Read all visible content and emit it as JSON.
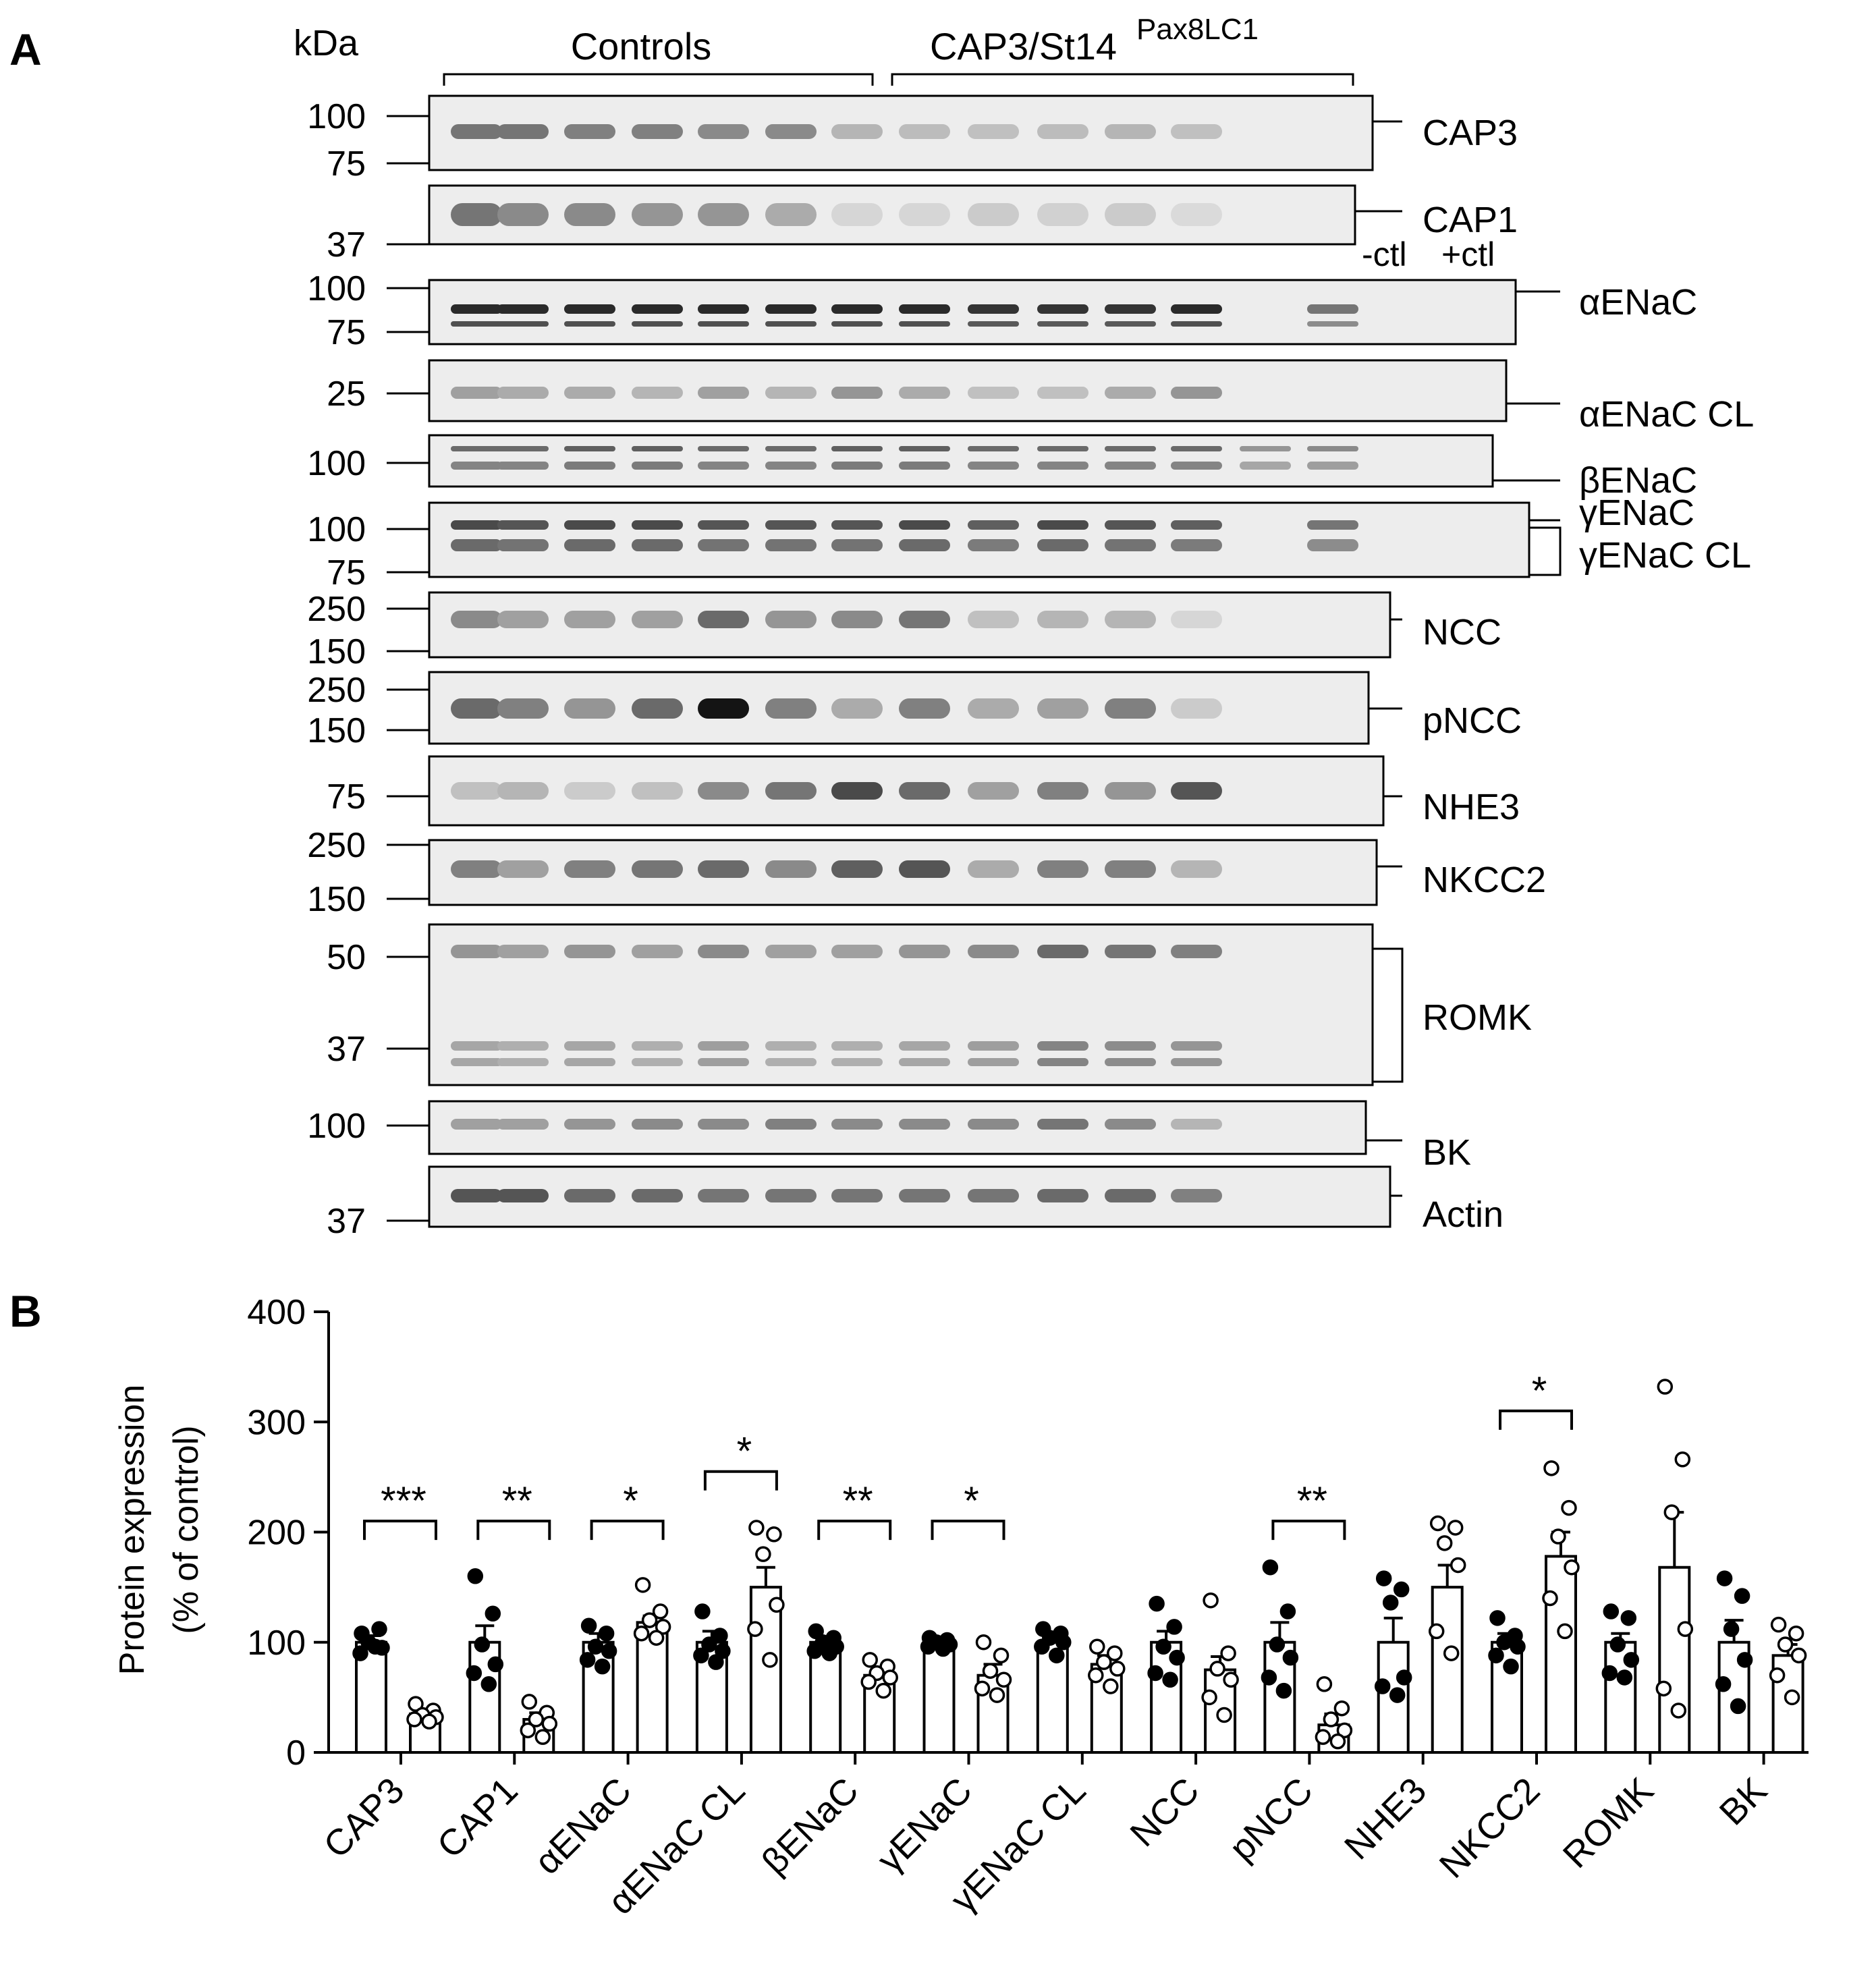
{
  "panel_a": {
    "letter": "A",
    "kda_label": "kDa",
    "groups": [
      {
        "label": "Controls"
      },
      {
        "label": "CAP3/St14",
        "superscript": "Pax8LC1"
      }
    ],
    "lane_labels": [
      "-ctl",
      "+ctl"
    ],
    "blots": [
      {
        "name": "CAP3",
        "markers": [
          "100",
          "75"
        ],
        "lanes": [
          0.55,
          0.55,
          0.5,
          0.5,
          0.45,
          0.45,
          0.25,
          0.22,
          0.2,
          0.22,
          0.25,
          0.2
        ]
      },
      {
        "name": "CAP1",
        "markers": [
          "37"
        ],
        "lanes": [
          0.55,
          0.45,
          0.45,
          0.4,
          0.4,
          0.3,
          0.1,
          0.1,
          0.15,
          0.12,
          0.15,
          0.08
        ]
      },
      {
        "name": "αENaC",
        "markers": [
          "100",
          "75"
        ],
        "lanes": [
          0.9,
          0.9,
          0.9,
          0.9,
          0.9,
          0.9,
          0.9,
          0.9,
          0.85,
          0.85,
          0.85,
          0.9,
          0,
          0.55
        ]
      },
      {
        "name": "αENaC CL",
        "markers": [
          "25"
        ],
        "lanes": [
          0.35,
          0.3,
          0.3,
          0.25,
          0.35,
          0.25,
          0.4,
          0.3,
          0.2,
          0.2,
          0.3,
          0.4,
          0,
          0
        ]
      },
      {
        "name": "βENaC",
        "markers": [
          "100"
        ],
        "lanes": [
          0.6,
          0.6,
          0.65,
          0.65,
          0.6,
          0.6,
          0.65,
          0.65,
          0.6,
          0.6,
          0.6,
          0.6,
          0.4,
          0.45
        ]
      },
      {
        "name": "γENaC",
        "markers": [
          "100",
          "75"
        ],
        "lanes": [
          0.75,
          0.7,
          0.75,
          0.75,
          0.7,
          0.7,
          0.7,
          0.75,
          0.65,
          0.75,
          0.7,
          0.65,
          0,
          0.55
        ]
      },
      {
        "name": "NCC",
        "markers": [
          "250",
          "150"
        ],
        "lanes": [
          0.45,
          0.35,
          0.35,
          0.35,
          0.6,
          0.4,
          0.45,
          0.55,
          0.2,
          0.25,
          0.25,
          0.1
        ]
      },
      {
        "name": "pNCC",
        "markers": [
          "250",
          "150"
        ],
        "lanes": [
          0.6,
          0.5,
          0.4,
          0.6,
          1.0,
          0.5,
          0.3,
          0.5,
          0.3,
          0.35,
          0.5,
          0.15
        ]
      },
      {
        "name": "NHE3",
        "markers": [
          "75"
        ],
        "lanes": [
          0.2,
          0.25,
          0.15,
          0.2,
          0.45,
          0.55,
          0.75,
          0.6,
          0.35,
          0.5,
          0.4,
          0.7
        ]
      },
      {
        "name": "NKCC2",
        "markers": [
          "250",
          "150"
        ],
        "lanes": [
          0.5,
          0.35,
          0.5,
          0.55,
          0.6,
          0.45,
          0.65,
          0.7,
          0.3,
          0.5,
          0.5,
          0.25
        ]
      },
      {
        "name": "ROMK",
        "markers": [
          "50",
          "37"
        ],
        "lanes": [
          0.4,
          0.35,
          0.4,
          0.35,
          0.45,
          0.35,
          0.35,
          0.4,
          0.45,
          0.6,
          0.55,
          0.5
        ]
      },
      {
        "name": "BK",
        "markers": [
          "100"
        ],
        "lanes": [
          0.35,
          0.35,
          0.4,
          0.45,
          0.45,
          0.5,
          0.45,
          0.45,
          0.45,
          0.55,
          0.45,
          0.25
        ]
      },
      {
        "name": "Actin",
        "markers": [
          "37"
        ],
        "lanes": [
          0.7,
          0.7,
          0.6,
          0.6,
          0.55,
          0.55,
          0.55,
          0.55,
          0.55,
          0.6,
          0.6,
          0.5
        ]
      }
    ]
  },
  "panel_b": {
    "letter": "B",
    "chart_data": {
      "type": "bar",
      "ylabel": "Protein expression",
      "ylabel_sub": "(% of control)",
      "ylim": [
        0,
        400
      ],
      "yticks": [
        "0",
        "100",
        "200",
        "300",
        "400"
      ],
      "categories": [
        "CAP3",
        "CAP1",
        "αENaC",
        "αENaC CL",
        "βENaC",
        "γENaC",
        "γENaC CL",
        "NCC",
        "pNCC",
        "NHE3",
        "NKCC2",
        "ROMK",
        "BK"
      ],
      "series": [
        {
          "values": [
            100,
            100,
            100,
            100,
            100,
            100,
            100,
            100,
            100,
            100,
            100,
            100,
            100
          ],
          "errors": [
            6,
            15,
            8,
            10,
            5,
            3,
            8,
            10,
            18,
            22,
            8,
            8,
            20
          ],
          "points": [
            [
              108,
              112,
              100,
              95,
              90,
              96
            ],
            [
              160,
              126,
              98,
              80,
              72,
              62
            ],
            [
              115,
              108,
              96,
              92,
              84,
              78
            ],
            [
              128,
              106,
              98,
              92,
              88,
              82
            ],
            [
              110,
              104,
              100,
              96,
              92,
              90
            ],
            [
              104,
              102,
              100,
              98,
              96,
              94
            ],
            [
              112,
              108,
              104,
              100,
              96,
              88
            ],
            [
              135,
              114,
              96,
              86,
              72,
              66
            ],
            [
              168,
              128,
              98,
              86,
              68,
              56
            ],
            [
              158,
              148,
              136,
              68,
              60,
              52
            ],
            [
              122,
              106,
              100,
              96,
              88,
              78
            ],
            [
              128,
              122,
              98,
              84,
              72,
              68
            ],
            [
              158,
              142,
              112,
              84,
              62,
              42
            ]
          ]
        },
        {
          "values": [
            35,
            30,
            118,
            150,
            70,
            70,
            80,
            75,
            25,
            150,
            178,
            168,
            88
          ],
          "errors": [
            4,
            6,
            6,
            18,
            5,
            10,
            8,
            12,
            10,
            20,
            22,
            50,
            10
          ],
          "points": [
            [
              44,
              38,
              34,
              32,
              30,
              28
            ],
            [
              46,
              36,
              30,
              26,
              20,
              14
            ],
            [
              152,
              128,
              120,
              114,
              108,
              104
            ],
            [
              204,
              198,
              180,
              134,
              112,
              84
            ],
            [
              84,
              78,
              72,
              68,
              64,
              56
            ],
            [
              100,
              88,
              74,
              66,
              58,
              52
            ],
            [
              96,
              90,
              82,
              76,
              70,
              60
            ],
            [
              138,
              90,
              76,
              66,
              50,
              34
            ],
            [
              62,
              40,
              30,
              20,
              14,
              10
            ],
            [
              208,
              204,
              190,
              170,
              110,
              90
            ],
            [
              258,
              222,
              196,
              168,
              140,
              110
            ],
            [
              332,
              266,
              218,
              112,
              58,
              38
            ],
            [
              116,
              108,
              98,
              88,
              70,
              50
            ]
          ]
        }
      ],
      "significance": [
        {
          "category": 0,
          "label": "***",
          "y": 210
        },
        {
          "category": 1,
          "label": "**",
          "y": 210
        },
        {
          "category": 2,
          "label": "*",
          "y": 210
        },
        {
          "category": 3,
          "label": "*",
          "y": 255
        },
        {
          "category": 4,
          "label": "**",
          "y": 210
        },
        {
          "category": 5,
          "label": "*",
          "y": 210
        },
        {
          "category": 8,
          "label": "**",
          "y": 210
        },
        {
          "category": 10,
          "label": "*",
          "y": 310
        }
      ]
    }
  }
}
